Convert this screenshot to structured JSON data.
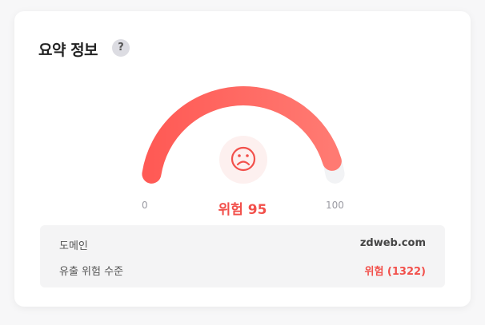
{
  "card": {
    "title": "요약 정보",
    "help_label": "?",
    "help_icon": "question-icon",
    "gauge": {
      "min_label": "0",
      "max_label": "100",
      "value": 95,
      "min": 0,
      "max": 100,
      "score_text": "위험 95",
      "face_icon": "sad-face-icon",
      "colors": {
        "start": "#ff5a55",
        "end": "#ff7a72",
        "track": "#f2f3f5",
        "face": "#f2504b",
        "face_bg": "#fdf0ef"
      }
    },
    "info": {
      "rows": [
        {
          "label": "도메인",
          "value": "zdweb.com"
        },
        {
          "label": "유출 위험 수준",
          "value": "위험 (1322)"
        }
      ]
    }
  }
}
